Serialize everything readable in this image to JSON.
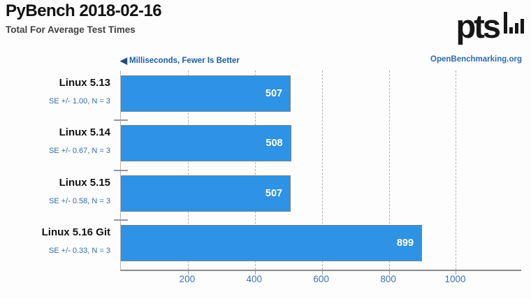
{
  "header": {
    "title": "PyBench 2018-02-16",
    "subtitle": "Total For Average Test Times",
    "logo_text": "pts",
    "logo_site": "OpenBenchmarking.org"
  },
  "legend": {
    "arrow_icon": "left-triangle",
    "label": "Milliseconds, Fewer Is Better"
  },
  "chart_data": {
    "type": "bar",
    "orientation": "horizontal",
    "title": "PyBench 2018-02-16",
    "subtitle": "Total For Average Test Times",
    "xlabel": "Milliseconds",
    "value_direction": "fewer-is-better",
    "categories": [
      "Linux 5.13",
      "Linux 5.14",
      "Linux 5.15",
      "Linux 5.16 Git"
    ],
    "values": [
      507,
      508,
      507,
      899
    ],
    "error_labels": [
      "SE +/- 1.00, N = 3",
      "SE +/- 0.67, N = 3",
      "SE +/- 0.58, N = 3",
      "SE +/- 0.33, N = 3"
    ],
    "xlim": [
      0,
      1195
    ],
    "xticks": [
      200,
      400,
      600,
      800,
      1000
    ],
    "grid": "dashed-vertical"
  },
  "colors": {
    "bar_fill": "#2e93e4",
    "bar_border": "#6f8496",
    "value_label": "#ffffff",
    "tick_label": "#3a70c0",
    "se_label": "#2e6db4",
    "legend_text": "#1a5fa8",
    "legend_arrow": "#1d4e7e",
    "site_link": "#2a6cb5",
    "axis_line": "#8a8a8a",
    "gridline": "#b2b2b2"
  }
}
